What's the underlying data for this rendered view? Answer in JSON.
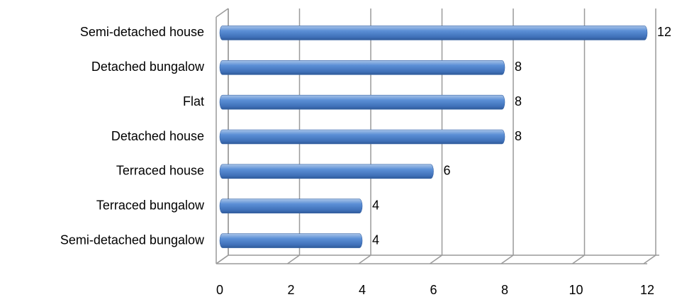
{
  "chart_data": {
    "type": "bar",
    "orientation": "horizontal",
    "categories": [
      "Semi-detached house",
      "Detached bungalow",
      "Flat",
      "Detached house",
      "Terraced house",
      "Terraced bungalow",
      "Semi-detached bungalow"
    ],
    "values": [
      12,
      8,
      8,
      8,
      6,
      4,
      4
    ],
    "color": "#4f81bd",
    "xlim": [
      0,
      12
    ],
    "xticks": [
      0,
      2,
      4,
      6,
      8,
      10,
      12
    ],
    "grid": true
  }
}
